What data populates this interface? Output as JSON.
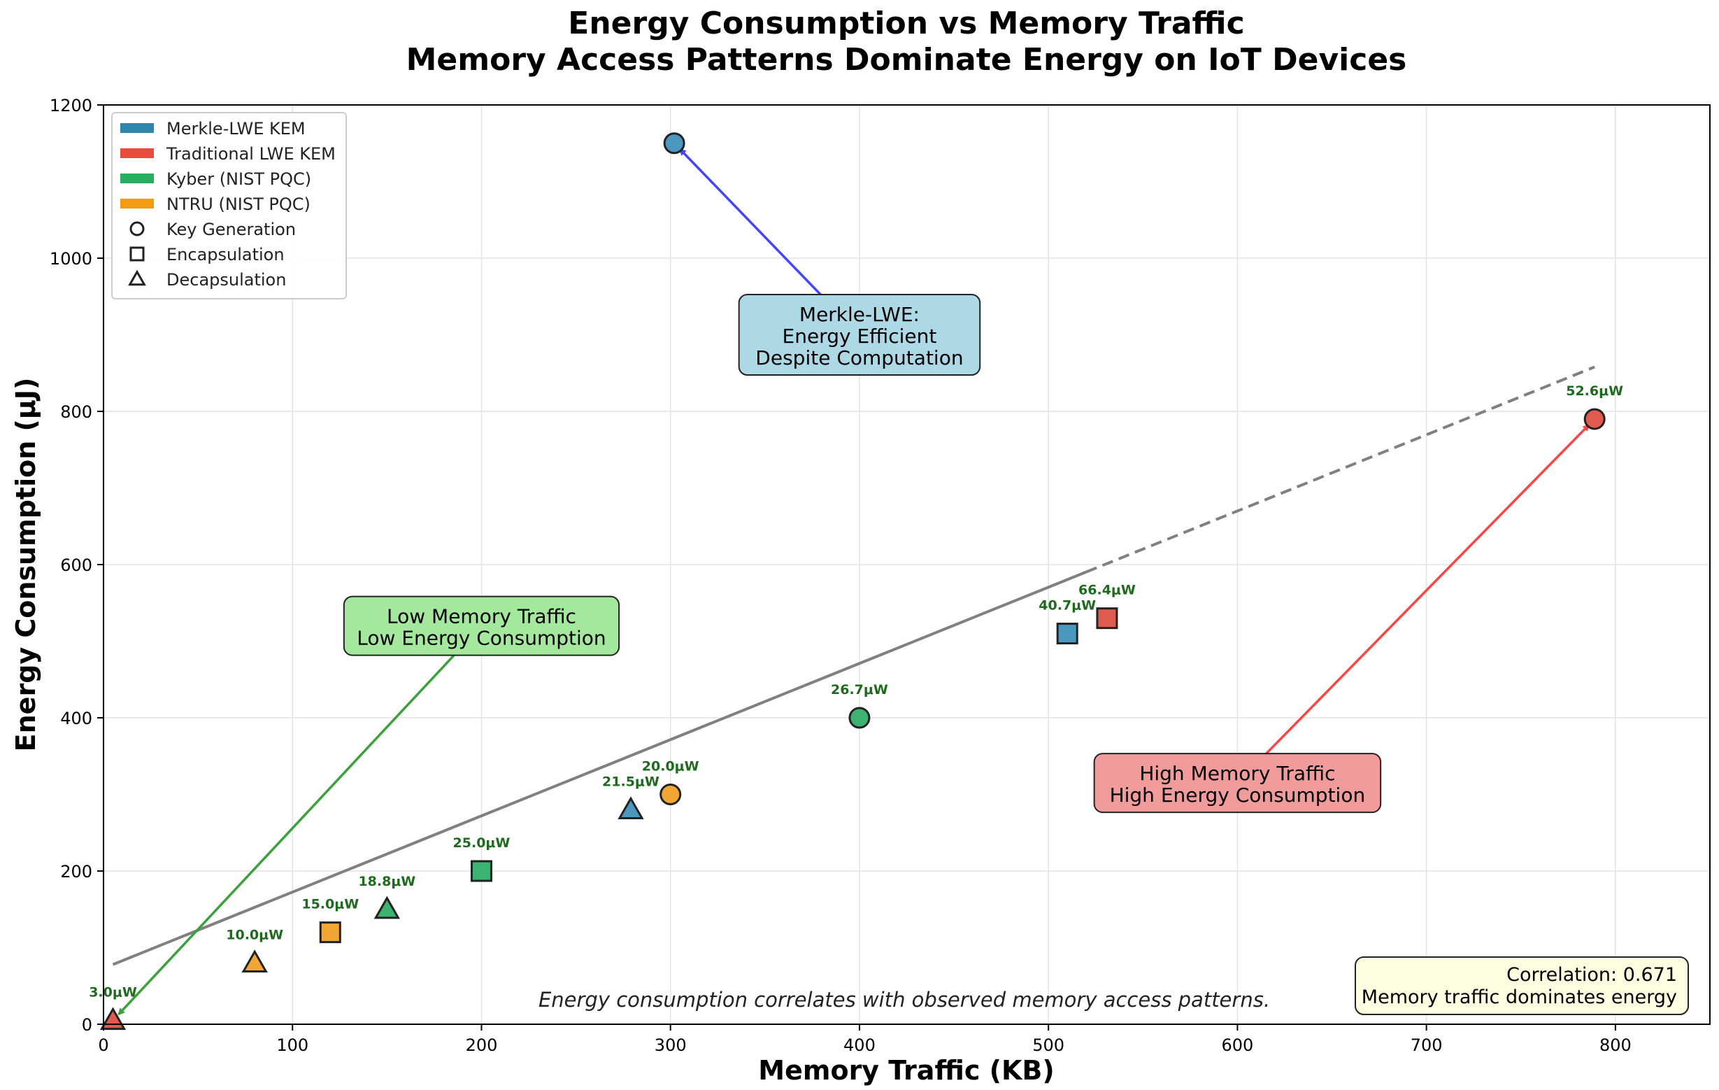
{
  "chart_data": {
    "type": "scatter",
    "title": "Energy Consumption vs Memory Traffic",
    "subtitle": "Memory Access Patterns Dominate Energy on IoT Devices",
    "xlabel": "Memory Traffic (KB)",
    "ylabel": "Energy Consumption (μJ)",
    "xlim": [
      0,
      850
    ],
    "ylim": [
      0,
      1200
    ],
    "xticks": [
      0,
      100,
      200,
      300,
      400,
      500,
      600,
      700,
      800
    ],
    "yticks": [
      0,
      200,
      400,
      600,
      800,
      1000,
      1200
    ],
    "grid": true,
    "legend_placement": "top-left",
    "series": [
      {
        "name": "Merkle-LWE KEM",
        "color": "#2e86ab",
        "fill": "#4b97bd"
      },
      {
        "name": "Traditional LWE KEM",
        "color": "#e74c3c",
        "fill": "#e05a50"
      },
      {
        "name": "Kyber (NIST PQC)",
        "color": "#27ae60",
        "fill": "#3db371"
      },
      {
        "name": "NTRU (NIST PQC)",
        "color": "#f39c12",
        "fill": "#f2a634"
      }
    ],
    "markers": [
      {
        "name": "Key Generation",
        "shape": "circle"
      },
      {
        "name": "Encapsulation",
        "shape": "square"
      },
      {
        "name": "Decapsulation",
        "shape": "triangle"
      }
    ],
    "points": [
      {
        "series": 0,
        "marker": "circle",
        "x": 302,
        "y": 1150,
        "label": ""
      },
      {
        "series": 0,
        "marker": "square",
        "x": 510,
        "y": 510,
        "label": "40.7μW"
      },
      {
        "series": 0,
        "marker": "triangle",
        "x": 279,
        "y": 280,
        "label": "21.5μW"
      },
      {
        "series": 1,
        "marker": "circle",
        "x": 789,
        "y": 790,
        "label": "52.6μW"
      },
      {
        "series": 1,
        "marker": "square",
        "x": 531,
        "y": 530,
        "label": "66.4μW"
      },
      {
        "series": 1,
        "marker": "triangle",
        "x": 5,
        "y": 5,
        "label": "3.0μW"
      },
      {
        "series": 2,
        "marker": "circle",
        "x": 400,
        "y": 400,
        "label": "26.7μW"
      },
      {
        "series": 2,
        "marker": "square",
        "x": 200,
        "y": 200,
        "label": "25.0μW"
      },
      {
        "series": 2,
        "marker": "triangle",
        "x": 150,
        "y": 150,
        "label": "18.8μW"
      },
      {
        "series": 3,
        "marker": "circle",
        "x": 300,
        "y": 300,
        "label": "20.0μW"
      },
      {
        "series": 3,
        "marker": "square",
        "x": 120,
        "y": 120,
        "label": "15.0μW"
      },
      {
        "series": 3,
        "marker": "triangle",
        "x": 80,
        "y": 80,
        "label": "10.0μW"
      }
    ],
    "trendline": {
      "x": [
        5,
        789
      ],
      "y": [
        78,
        858
      ],
      "solid_until_x": 520
    },
    "annotations": [
      {
        "lines": [
          "Merkle-LWE:",
          "Energy Efficient",
          "Despite Computation"
        ],
        "box_x": 400,
        "box_y": 900,
        "target_x": 302,
        "target_y": 1150,
        "color": "#4444ff",
        "bg": "#add8e6"
      },
      {
        "lines": [
          "Low Memory Traffic",
          "Low Energy Consumption"
        ],
        "box_x": 200,
        "box_y": 520,
        "target_x": 5,
        "target_y": 5,
        "color": "#3ca03c",
        "bg": "#a3e89c"
      },
      {
        "lines": [
          "High Memory Traffic",
          "High Energy Consumption"
        ],
        "box_x": 600,
        "box_y": 315,
        "target_x": 789,
        "target_y": 790,
        "color": "#ff4444",
        "bg": "#f29b9b"
      }
    ],
    "footnote": "Energy consumption correlates with observed memory access patterns.",
    "stats_box": [
      "Correlation: 0.671",
      "Memory traffic dominates energy"
    ]
  }
}
